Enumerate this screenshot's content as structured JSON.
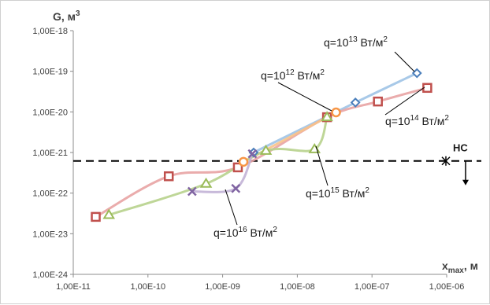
{
  "chart_data": {
    "type": "line",
    "x_scale": "log",
    "y_scale": "log",
    "xlim": [
      1e-11,
      1e-06
    ],
    "ylim": [
      1e-24,
      1e-18
    ],
    "x_ticks": [
      {
        "v": 1e-11,
        "label": "1,00E-11"
      },
      {
        "v": 1e-10,
        "label": "1,00E-10"
      },
      {
        "v": 1e-09,
        "label": "1,00E-09"
      },
      {
        "v": 1e-08,
        "label": "1,00E-08"
      },
      {
        "v": 1e-07,
        "label": "1,00E-07"
      },
      {
        "v": 1e-06,
        "label": "1,00E-06"
      }
    ],
    "y_ticks": [
      {
        "v": 1e-18,
        "label": "1,00E-18"
      },
      {
        "v": 1e-19,
        "label": "1,00E-19"
      },
      {
        "v": 1e-20,
        "label": "1,00E-20"
      },
      {
        "v": 1e-21,
        "label": "1,00E-21"
      },
      {
        "v": 1e-22,
        "label": "1,00E-22"
      },
      {
        "v": 1e-23,
        "label": "1,00E-23"
      },
      {
        "v": 1e-24,
        "label": "1,00E-24"
      }
    ],
    "ylabel": "G, м³",
    "ylabel_main": "G, м",
    "ylabel_sup": "3",
    "xlabel_main": "x",
    "xlabel_sub": "max",
    "xlabel_tail": ", м",
    "grid": false,
    "threshold": {
      "name": "НС",
      "y": 6.2e-22
    },
    "series": [
      {
        "name": "q=10¹³ Вт/м²",
        "q_prefix": "q=10",
        "q_exp": "13",
        "q_unit": "Вт/м",
        "q_unit_exp": "2",
        "color": "#9ec3e6",
        "marker_color": "#4a7ebb",
        "marker": "diamond",
        "x": [
          2.6e-09,
          6e-08,
          4e-07
        ],
        "y": [
          1e-21,
          1.7e-20,
          9e-20
        ]
      },
      {
        "name": "q=10¹⁴ Вт/м²",
        "q_prefix": "q=10",
        "q_exp": "14",
        "q_unit": "Вт/м",
        "q_unit_exp": "2",
        "color": "#e8a3a3",
        "marker_color": "#c0504d",
        "marker": "square",
        "x": [
          2e-11,
          1.9e-10,
          1.6e-09,
          2.5e-08,
          1.2e-07,
          5.5e-07
        ],
        "y": [
          2.6e-23,
          2.6e-22,
          4.3e-22,
          7.4e-21,
          1.8e-20,
          3.9e-20
        ]
      },
      {
        "name": "q=10¹² Вт/м²",
        "q_prefix": "q=10",
        "q_exp": "12",
        "q_unit": "Вт/м",
        "q_unit_exp": "2",
        "color": "#f7c28a",
        "marker_color": "#f79646",
        "marker": "circle",
        "x": [
          1.9e-09,
          3.3e-08
        ],
        "y": [
          5.9e-22,
          9.7e-21
        ]
      },
      {
        "name": "q=10¹⁵ Вт/м²",
        "q_prefix": "q=10",
        "q_exp": "15",
        "q_unit": "Вт/м",
        "q_unit_exp": "2",
        "color": "#b7d28c",
        "marker_color": "#9bbb59",
        "marker": "triangle",
        "x": [
          3e-11,
          6e-10,
          3.8e-09,
          1.7e-08,
          2.5e-08
        ],
        "y": [
          2.9e-23,
          1.7e-22,
          1.1e-21,
          1.2e-21,
          7.4e-21
        ]
      },
      {
        "name": "q=10¹⁶ Вт/м²",
        "q_prefix": "q=10",
        "q_exp": "16",
        "q_unit": "Вт/м",
        "q_unit_exp": "2",
        "color": "#c2b3d6",
        "marker_color": "#8064a2",
        "marker": "x",
        "x": [
          3.9e-10,
          1.5e-09,
          2.5e-09
        ],
        "y": [
          1.1e-22,
          1.3e-22,
          9.3e-22
        ]
      }
    ],
    "annotations": [
      {
        "series": 0,
        "text_pt": [
          410,
          58
        ],
        "line_from": [
          500,
          65
        ],
        "line_to": [
          525,
          90
        ]
      },
      {
        "series": 1,
        "text_pt": [
          488,
          158
        ],
        "line_from": [
          488,
          145
        ],
        "line_to": [
          538,
          110
        ]
      },
      {
        "series": 2,
        "text_pt": [
          330,
          100
        ],
        "line_from": [
          352,
          104
        ],
        "line_to": [
          420,
          140
        ]
      },
      {
        "series": 3,
        "text_pt": [
          387,
          250
        ],
        "line_from": [
          415,
          235
        ],
        "line_to": [
          400,
          185
        ]
      },
      {
        "series": 4,
        "text_pt": [
          270,
          300
        ],
        "line_from": [
          300,
          285
        ],
        "line_to": [
          285,
          240
        ]
      }
    ]
  }
}
